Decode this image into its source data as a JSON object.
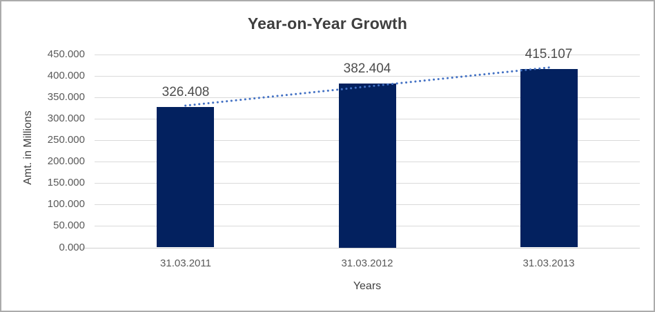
{
  "window": {
    "background": "#FFFFFF",
    "frame_border_color": "#ABABAB"
  },
  "chart_data": {
    "type": "bar",
    "title": "Year-on-Year Growth",
    "categories": [
      "31.03.2011",
      "31.03.2012",
      "31.03.2013"
    ],
    "values": [
      326.408,
      382.404,
      415.107
    ],
    "data_labels": [
      "326.408",
      "382.404",
      "415.107"
    ],
    "xlabel": "Years",
    "ylabel": "Amt. in Millions",
    "ylim": [
      0,
      450
    ],
    "ytick_interval": 50,
    "ytick_labels": [
      "450.000",
      "400.000",
      "350.000",
      "300.000",
      "250.000",
      "200.000",
      "150.000",
      "100.000",
      "50.000",
      "0.000"
    ],
    "grid": "horizontal",
    "legend": "none",
    "bar_color": "#03215F",
    "gridline_color": "#D9D9D9",
    "axisline_color": "#CFCFCF",
    "title_color": "#3F3F3F",
    "tick_label_color": "#595959",
    "data_label_color": "#4D4D4D",
    "trendline": {
      "type": "linear",
      "style": "dotted",
      "color": "#4472C4"
    }
  }
}
